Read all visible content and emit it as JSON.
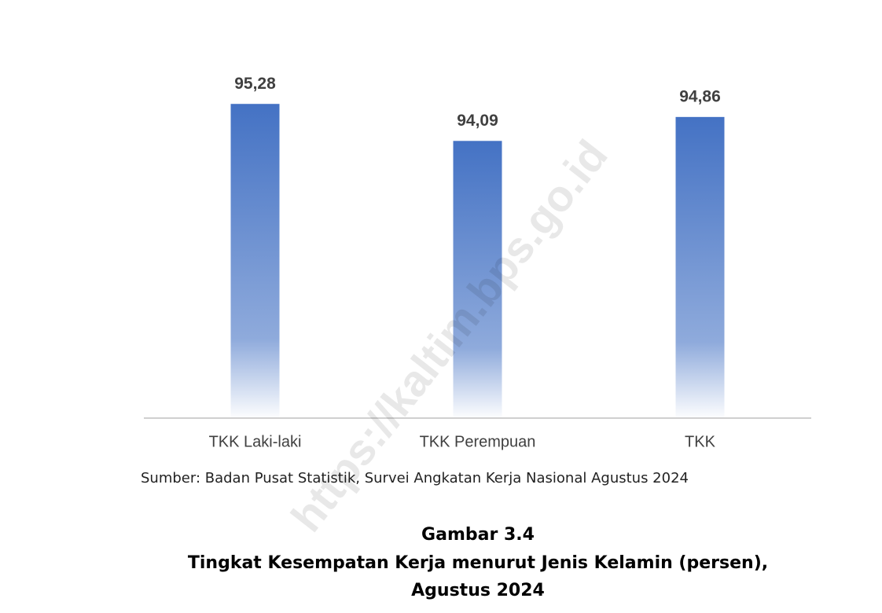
{
  "chart_data": {
    "type": "bar",
    "categories": [
      "TKK Laki-laki",
      "TKK Perempuan",
      "TKK"
    ],
    "values": [
      95.28,
      94.09,
      94.86
    ],
    "value_labels": [
      "95,28",
      "94,09",
      "94,86"
    ],
    "color": "#4472c4",
    "ylim": [
      85.2,
      96.6
    ]
  },
  "source": "Sumber: Badan Pusat Statistik, Survei Angkatan Kerja Nasional Agustus 2024",
  "caption": {
    "label": "Gambar 3.4",
    "title": "Tingkat Kesempatan Kerja menurut Jenis Kelamin (persen),",
    "period": "Agustus 2024"
  },
  "watermark": "https://kaltim.bps.go.id"
}
